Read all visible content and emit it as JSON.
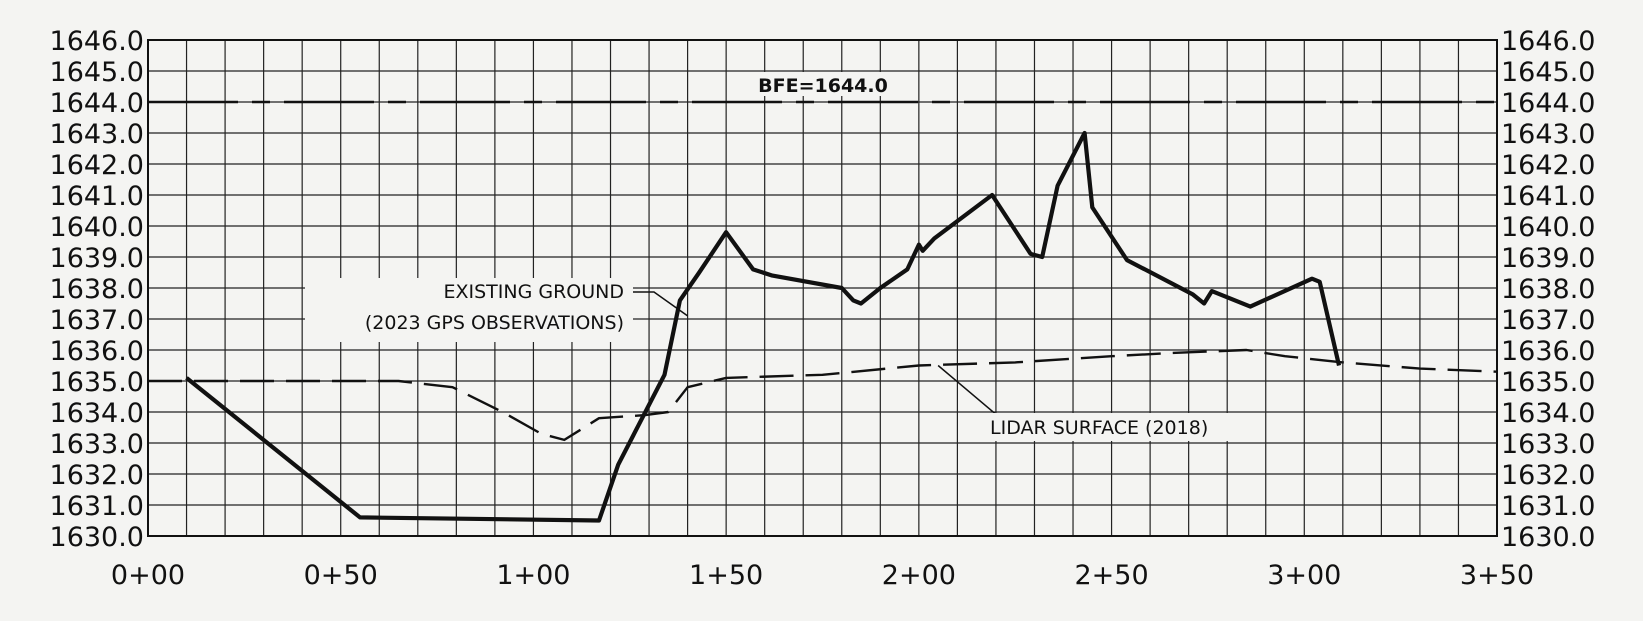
{
  "chart_data": {
    "type": "line",
    "title": "",
    "xlabel": "",
    "ylabel": "",
    "xlim": [
      0,
      350
    ],
    "ylim": [
      1630,
      1646
    ],
    "x_tick_values": [
      0,
      50,
      100,
      150,
      200,
      250,
      300,
      350
    ],
    "x_tick_labels": [
      "0+00",
      "0+50",
      "1+00",
      "1+50",
      "2+00",
      "2+50",
      "3+00",
      "3+50"
    ],
    "y_tick_values": [
      1646,
      1645,
      1644,
      1643,
      1642,
      1641,
      1640,
      1639,
      1638,
      1637,
      1636,
      1635,
      1634,
      1633,
      1632,
      1631,
      1630
    ],
    "y_tick_labels": [
      "1646.0",
      "1645.0",
      "1644.0",
      "1643.0",
      "1642.0",
      "1641.0",
      "1640.0",
      "1639.0",
      "1638.0",
      "1637.0",
      "1636.0",
      "1635.0",
      "1634.0",
      "1633.0",
      "1632.0",
      "1631.0",
      "1630.0"
    ],
    "grid": true,
    "series": [
      {
        "name": "EXISTING GROUND",
        "style": "solid-thick",
        "color": "#111111",
        "x": [
          10,
          55,
          117,
          122,
          134,
          138,
          143,
          150,
          157,
          162,
          180,
          183,
          185,
          190,
          197,
          200,
          201,
          204,
          219,
          229,
          232,
          236,
          243,
          245,
          254,
          271,
          274,
          276,
          286,
          302,
          304,
          309
        ],
        "y": [
          1635.1,
          1630.6,
          1630.5,
          1632.3,
          1635.2,
          1637.6,
          1638.5,
          1639.8,
          1638.6,
          1638.4,
          1638.0,
          1637.6,
          1637.5,
          1638.0,
          1638.6,
          1639.4,
          1639.2,
          1639.6,
          1641.0,
          1639.1,
          1639.0,
          1641.3,
          1643.0,
          1640.6,
          1638.9,
          1637.8,
          1637.5,
          1637.9,
          1637.4,
          1638.3,
          1638.2,
          1635.5
        ]
      },
      {
        "name": "LIDAR SURFACE (2018)",
        "style": "dashed",
        "color": "#111111",
        "x": [
          0,
          65,
          79,
          92,
          102,
          108,
          117,
          129,
          135,
          140,
          150,
          175,
          200,
          225,
          250,
          265,
          285,
          295,
          310,
          330,
          350
        ],
        "y": [
          1635.0,
          1635.0,
          1634.8,
          1634.0,
          1633.3,
          1633.1,
          1633.8,
          1633.9,
          1634.0,
          1634.8,
          1635.1,
          1635.2,
          1635.5,
          1635.6,
          1635.8,
          1635.9,
          1636.0,
          1635.8,
          1635.6,
          1635.4,
          1635.3
        ]
      }
    ],
    "reference_lines": [
      {
        "label": "BFE=1644.0",
        "y": 1644.0,
        "style": "long-dash"
      }
    ],
    "annotations": {
      "existing_ground_line1": "EXISTING GROUND",
      "existing_ground_line2": "(2023 GPS OBSERVATIONS)",
      "lidar_label": "LIDAR SURFACE (2018)"
    }
  }
}
